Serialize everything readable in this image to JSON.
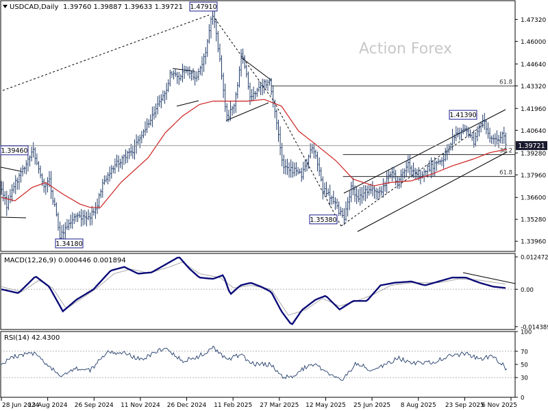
{
  "header": {
    "symbol_label": "USDCAD,Daily",
    "ohlc": "1.39760 1.39887 1.39633 1.39721"
  },
  "watermark": "Action Forex",
  "colors": {
    "price": "#1f3a68",
    "ma": "#cc1f1f",
    "macd_line": "#0a0a78",
    "signal_line": "#a8a8a8",
    "box_border": "#1a1a8c",
    "grid": "#b0b0b0",
    "current_bg": "#1a1a2e"
  },
  "chart_data": [
    {
      "type": "line",
      "panel": "price",
      "title": "USDCAD,Daily",
      "xlabel": "",
      "ylabel": "",
      "ylim": [
        1.3335,
        1.4845
      ],
      "yticks": [
        "1.47320",
        "1.46000",
        "1.44640",
        "1.43320",
        "1.41960",
        "1.40640",
        "1.39280",
        "1.37960",
        "1.36600",
        "1.35280",
        "1.33960"
      ],
      "x_tick_labels": [
        "28 Jun 2024",
        "13 Aug 2024",
        "26 Sep 2024",
        "11 Nov 2024",
        "26 Dec 2024",
        "11 Feb 2025",
        "27 Mar 2025",
        "12 May 2025",
        "25 Jun 2025",
        "8 Aug 2025",
        "23 Sep 2025",
        "6 Nov 2025"
      ],
      "current_price": "1.39721",
      "price_knots": [
        [
          0,
          1.372
        ],
        [
          8,
          1.361
        ],
        [
          18,
          1.373
        ],
        [
          30,
          1.381
        ],
        [
          40,
          1.391
        ],
        [
          47,
          1.394
        ],
        [
          55,
          1.383
        ],
        [
          62,
          1.371
        ],
        [
          70,
          1.376
        ],
        [
          76,
          1.364
        ],
        [
          82,
          1.352
        ],
        [
          86,
          1.3418
        ],
        [
          96,
          1.349
        ],
        [
          110,
          1.357
        ],
        [
          125,
          1.352
        ],
        [
          140,
          1.361
        ],
        [
          150,
          1.377
        ],
        [
          160,
          1.382
        ],
        [
          175,
          1.389
        ],
        [
          190,
          1.393
        ],
        [
          205,
          1.402
        ],
        [
          225,
          1.418
        ],
        [
          240,
          1.428
        ],
        [
          248,
          1.442
        ],
        [
          262,
          1.438
        ],
        [
          272,
          1.444
        ],
        [
          285,
          1.436
        ],
        [
          298,
          1.452
        ],
        [
          310,
          1.4791
        ],
        [
          320,
          1.448
        ],
        [
          330,
          1.414
        ],
        [
          342,
          1.423
        ],
        [
          352,
          1.455
        ],
        [
          365,
          1.426
        ],
        [
          380,
          1.433
        ],
        [
          392,
          1.437
        ],
        [
          405,
          1.407
        ],
        [
          412,
          1.383
        ],
        [
          425,
          1.383
        ],
        [
          440,
          1.379
        ],
        [
          455,
          1.397
        ],
        [
          462,
          1.388
        ],
        [
          470,
          1.371
        ],
        [
          480,
          1.368
        ],
        [
          495,
          1.357
        ],
        [
          502,
          1.3538
        ],
        [
          512,
          1.372
        ],
        [
          523,
          1.366
        ],
        [
          535,
          1.37
        ],
        [
          548,
          1.37
        ],
        [
          558,
          1.371
        ],
        [
          568,
          1.382
        ],
        [
          580,
          1.376
        ],
        [
          596,
          1.386
        ],
        [
          610,
          1.378
        ],
        [
          625,
          1.384
        ],
        [
          640,
          1.386
        ],
        [
          652,
          1.393
        ],
        [
          660,
          1.402
        ],
        [
          672,
          1.405
        ],
        [
          680,
          1.407
        ],
        [
          692,
          1.399
        ],
        [
          705,
          1.4139
        ],
        [
          715,
          1.401
        ],
        [
          725,
          1.401
        ],
        [
          735,
          1.404
        ],
        [
          740,
          1.39721
        ]
      ],
      "ma_knots": [
        [
          0,
          1.366
        ],
        [
          20,
          1.364
        ],
        [
          45,
          1.372
        ],
        [
          65,
          1.375
        ],
        [
          90,
          1.368
        ],
        [
          115,
          1.362
        ],
        [
          130,
          1.36
        ],
        [
          145,
          1.36
        ],
        [
          175,
          1.375
        ],
        [
          215,
          1.39
        ],
        [
          240,
          1.405
        ],
        [
          265,
          1.415
        ],
        [
          290,
          1.422
        ],
        [
          310,
          1.424
        ],
        [
          335,
          1.424
        ],
        [
          360,
          1.424
        ],
        [
          385,
          1.425
        ],
        [
          410,
          1.421
        ],
        [
          435,
          1.406
        ],
        [
          460,
          1.398
        ],
        [
          490,
          1.388
        ],
        [
          515,
          1.377
        ],
        [
          545,
          1.373
        ],
        [
          570,
          1.375
        ],
        [
          600,
          1.376
        ],
        [
          630,
          1.38
        ],
        [
          660,
          1.385
        ],
        [
          690,
          1.389
        ],
        [
          715,
          1.393
        ],
        [
          740,
          1.395
        ]
      ],
      "levels": [
        {
          "label": "61.8",
          "value": 1.4332,
          "x_from": 395
        },
        {
          "label": "38.2",
          "value": 1.3918,
          "x_from": 500
        },
        {
          "label": "61.8",
          "value": 1.3786,
          "x_from": 500
        }
      ],
      "price_labels": [
        "1.47910",
        "1.39460",
        "1.34180",
        "1.35380",
        "1.41390"
      ]
    },
    {
      "type": "line",
      "panel": "macd",
      "title": "MACD(12,26,9) 0.000446 0.001894",
      "ylim": [
        -0.0155,
        0.0138
      ],
      "yticks": [
        "0.012472",
        "0.00",
        "-0.014389"
      ],
      "macd_knots": [
        [
          0,
          0.0
        ],
        [
          25,
          -0.0015
        ],
        [
          50,
          0.005
        ],
        [
          70,
          0.001
        ],
        [
          90,
          -0.0085
        ],
        [
          110,
          -0.004
        ],
        [
          135,
          0.0
        ],
        [
          160,
          0.0072
        ],
        [
          180,
          0.0086
        ],
        [
          200,
          0.006
        ],
        [
          220,
          0.0065
        ],
        [
          240,
          0.0095
        ],
        [
          260,
          0.0125
        ],
        [
          275,
          0.008
        ],
        [
          290,
          0.0045
        ],
        [
          310,
          0.004
        ],
        [
          325,
          0.0055
        ],
        [
          335,
          -0.002
        ],
        [
          350,
          0.0015
        ],
        [
          365,
          0.0025
        ],
        [
          380,
          0.001
        ],
        [
          395,
          -0.001
        ],
        [
          410,
          -0.0085
        ],
        [
          425,
          -0.0138
        ],
        [
          440,
          -0.008
        ],
        [
          460,
          -0.004
        ],
        [
          475,
          -0.0025
        ],
        [
          495,
          -0.0078
        ],
        [
          515,
          -0.0045
        ],
        [
          535,
          -0.0045
        ],
        [
          555,
          0.0015
        ],
        [
          575,
          0.0025
        ],
        [
          600,
          0.003
        ],
        [
          620,
          0.0015
        ],
        [
          640,
          0.003
        ],
        [
          660,
          0.0045
        ],
        [
          680,
          0.0045
        ],
        [
          700,
          0.0025
        ],
        [
          720,
          0.001
        ],
        [
          740,
          0.000446
        ]
      ],
      "signal_knots": [
        [
          0,
          0.001
        ],
        [
          30,
          -0.001
        ],
        [
          55,
          0.0035
        ],
        [
          75,
          0.0005
        ],
        [
          95,
          -0.0075
        ],
        [
          115,
          -0.004
        ],
        [
          140,
          0.0005
        ],
        [
          165,
          0.006
        ],
        [
          190,
          0.0078
        ],
        [
          215,
          0.0062
        ],
        [
          245,
          0.0085
        ],
        [
          265,
          0.0105
        ],
        [
          290,
          0.006
        ],
        [
          320,
          0.0045
        ],
        [
          340,
          0.0005
        ],
        [
          365,
          0.0015
        ],
        [
          395,
          0.0
        ],
        [
          420,
          -0.01
        ],
        [
          445,
          -0.008
        ],
        [
          470,
          -0.0035
        ],
        [
          495,
          -0.0065
        ],
        [
          520,
          -0.0045
        ],
        [
          545,
          -0.002
        ],
        [
          570,
          0.0015
        ],
        [
          600,
          0.0025
        ],
        [
          640,
          0.0025
        ],
        [
          670,
          0.004
        ],
        [
          700,
          0.0035
        ],
        [
          740,
          0.001894
        ]
      ]
    },
    {
      "type": "line",
      "panel": "rsi",
      "title": "RSI(14) 42.4300",
      "ylim": [
        0,
        100
      ],
      "yticks": [
        "100",
        "70",
        "50",
        "30",
        "0"
      ],
      "rsi_knots": [
        [
          0,
          52
        ],
        [
          20,
          62
        ],
        [
          45,
          68
        ],
        [
          70,
          48
        ],
        [
          88,
          32
        ],
        [
          110,
          44
        ],
        [
          130,
          40
        ],
        [
          155,
          70
        ],
        [
          185,
          66
        ],
        [
          205,
          56
        ],
        [
          225,
          70
        ],
        [
          245,
          72
        ],
        [
          265,
          56
        ],
        [
          285,
          60
        ],
        [
          310,
          76
        ],
        [
          330,
          58
        ],
        [
          350,
          64
        ],
        [
          370,
          50
        ],
        [
          395,
          50
        ],
        [
          410,
          32
        ],
        [
          425,
          30
        ],
        [
          445,
          46
        ],
        [
          460,
          50
        ],
        [
          475,
          38
        ],
        [
          500,
          28
        ],
        [
          520,
          52
        ],
        [
          540,
          42
        ],
        [
          560,
          48
        ],
        [
          580,
          60
        ],
        [
          600,
          52
        ],
        [
          620,
          52
        ],
        [
          640,
          56
        ],
        [
          660,
          64
        ],
        [
          680,
          66
        ],
        [
          700,
          58
        ],
        [
          715,
          62
        ],
        [
          730,
          54
        ],
        [
          740,
          42.43
        ]
      ]
    }
  ]
}
